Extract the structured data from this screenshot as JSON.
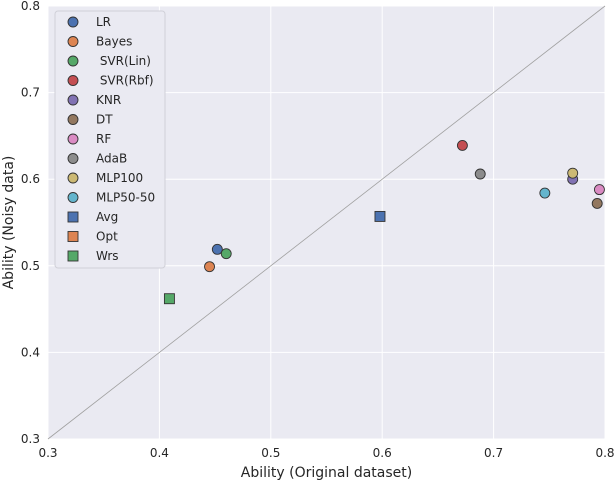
{
  "chart_data": {
    "type": "scatter",
    "title": "",
    "xlabel": "Ability (Original dataset)",
    "ylabel": "Ability (Noisy data)",
    "xlim": [
      0.3,
      0.8
    ],
    "ylim": [
      0.3,
      0.8
    ],
    "xticks": [
      "0.3",
      "0.4",
      "0.5",
      "0.6",
      "0.7",
      "0.8"
    ],
    "yticks": [
      "0.3",
      "0.4",
      "0.5",
      "0.6",
      "0.7",
      "0.8"
    ],
    "grid": true,
    "diagonal_line": true,
    "legend_position": "upper-left",
    "background_color": "#eaeaf2",
    "series": [
      {
        "name": "LR",
        "marker": "circle",
        "color": "#4c72b0",
        "points": [
          [
            0.452,
            0.519
          ]
        ]
      },
      {
        "name": "Bayes",
        "marker": "circle",
        "color": "#dd8452",
        "points": [
          [
            0.445,
            0.499
          ]
        ]
      },
      {
        "name": " SVR(Lin)",
        "marker": "circle",
        "color": "#55a868",
        "points": [
          [
            0.46,
            0.514
          ]
        ]
      },
      {
        "name": " SVR(Rbf)",
        "marker": "circle",
        "color": "#c44e52",
        "points": [
          [
            0.672,
            0.639
          ]
        ]
      },
      {
        "name": "KNR",
        "marker": "circle",
        "color": "#8172b3",
        "points": [
          [
            0.771,
            0.6
          ]
        ]
      },
      {
        "name": "DT",
        "marker": "circle",
        "color": "#937860",
        "points": [
          [
            0.793,
            0.572
          ]
        ]
      },
      {
        "name": "RF",
        "marker": "circle",
        "color": "#da8bc3",
        "points": [
          [
            0.795,
            0.588
          ]
        ]
      },
      {
        "name": "AdaB",
        "marker": "circle",
        "color": "#8c8c8c",
        "points": [
          [
            0.688,
            0.606
          ]
        ]
      },
      {
        "name": "MLP100",
        "marker": "circle",
        "color": "#ccb974",
        "points": [
          [
            0.771,
            0.607
          ]
        ]
      },
      {
        "name": "MLP50-50",
        "marker": "circle",
        "color": "#64b5cd",
        "points": [
          [
            0.746,
            0.584
          ]
        ]
      },
      {
        "name": "Avg",
        "marker": "square",
        "color": "#4c72b0",
        "points": [
          [
            0.598,
            0.557
          ]
        ]
      },
      {
        "name": "Opt",
        "marker": "square",
        "color": "#dd8452",
        "points": []
      },
      {
        "name": "Wrs",
        "marker": "square",
        "color": "#55a868",
        "points": [
          [
            0.409,
            0.462
          ]
        ]
      }
    ]
  }
}
